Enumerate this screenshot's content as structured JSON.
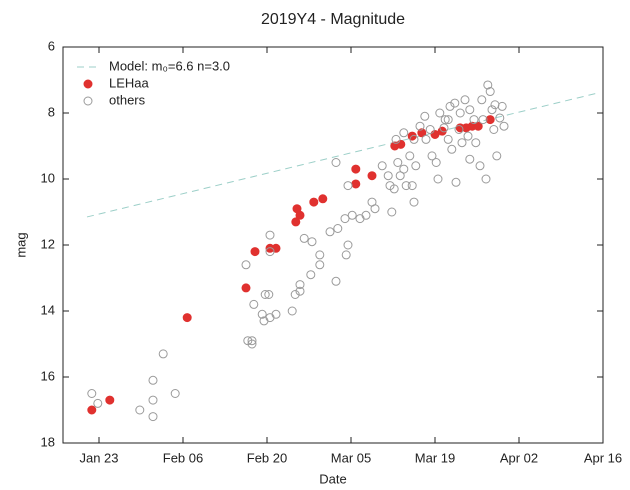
{
  "chart_data": {
    "type": "scatter",
    "title": "2019Y4 - Magnitude",
    "x_label": "Date",
    "y_label": "mag",
    "xlim": [
      17,
      107
    ],
    "xticks": [
      {
        "value": 23,
        "label": "Jan 23"
      },
      {
        "value": 37,
        "label": "Feb 06"
      },
      {
        "value": 51,
        "label": "Feb 20"
      },
      {
        "value": 65,
        "label": "Mar 05"
      },
      {
        "value": 79,
        "label": "Mar 19"
      },
      {
        "value": 93,
        "label": "Apr 02"
      },
      {
        "value": 107,
        "label": "Apr 16"
      }
    ],
    "ylim": [
      18,
      6
    ],
    "yticks": [
      6,
      8,
      10,
      12,
      14,
      16,
      18
    ],
    "legend": "upper left",
    "series": [
      {
        "name": "Model: m₀=6.6 n=3.0",
        "color": "#9ccfc8",
        "style": "dashed-line",
        "x": [
          21,
          106
        ],
        "values": [
          11.15,
          7.4
        ]
      },
      {
        "name": "LEHaa",
        "color": "#e0312f",
        "style": "filled",
        "x": [
          21.8,
          24.8,
          37.7,
          47.5,
          49,
          51.5,
          52.5,
          55.8,
          56,
          56.5,
          58.8,
          60.3,
          65.8,
          65.8,
          68.5,
          72.3,
          73.3,
          75.2,
          76.8,
          79,
          80.2,
          83.2,
          84.2,
          85.2,
          86.2,
          88.2
        ],
        "values": [
          17.0,
          16.7,
          14.2,
          13.3,
          12.2,
          12.1,
          12.1,
          11.3,
          10.9,
          11.1,
          10.7,
          10.6,
          9.7,
          10.15,
          9.9,
          9.0,
          8.95,
          8.7,
          8.6,
          8.65,
          8.55,
          8.45,
          8.45,
          8.4,
          8.4,
          8.2
        ]
      },
      {
        "name": "others",
        "color": "#9a9a9a",
        "style": "hollow",
        "x": [
          21.8,
          22.8,
          29.8,
          32,
          32,
          32,
          33.7,
          35.7,
          47.5,
          47.8,
          48.5,
          48.5,
          48.8,
          50.2,
          50.7,
          51.3,
          51.5,
          51.5,
          50.5,
          51.5,
          52.5,
          55.2,
          55.7,
          56.5,
          56.5,
          57.2,
          58.5,
          58.3,
          59.8,
          59.8,
          62.5,
          61.5,
          62.8,
          64,
          64.5,
          64.2,
          65.2,
          62.5,
          64.5,
          66.5,
          67.5,
          68.5,
          69,
          70.2,
          71.2,
          71.5,
          71.8,
          72.2,
          72.8,
          73.2,
          73.8,
          74.2,
          74.8,
          75.5,
          75.2,
          75.8,
          75.5,
          76.5,
          77.3,
          78.2,
          78.5,
          79.2,
          79.5,
          79.8,
          80.7,
          81.2,
          81.5,
          81.8,
          82.3,
          82.5,
          83.2,
          83.5,
          84,
          84.5,
          84.8,
          85.5,
          85.8,
          86.5,
          86.8,
          87.5,
          87.8,
          88.2,
          88.5,
          88.8,
          89.3,
          89.8,
          90.2,
          90.5,
          72.5,
          73.8,
          77.5,
          80.5,
          83,
          87,
          89,
          84.8,
          81.2
        ],
        "values": [
          16.5,
          16.8,
          17.0,
          16.1,
          16.7,
          17.2,
          15.3,
          16.5,
          12.6,
          14.9,
          14.9,
          15.0,
          13.8,
          14.1,
          13.5,
          13.5,
          11.7,
          12.2,
          14.3,
          14.2,
          14.1,
          14.0,
          13.5,
          13.2,
          13.4,
          11.8,
          11.9,
          12.9,
          12.6,
          12.3,
          13.1,
          11.6,
          11.5,
          11.2,
          12.0,
          12.3,
          11.1,
          9.5,
          10.2,
          11.2,
          11.1,
          10.7,
          10.9,
          9.6,
          9.9,
          10.2,
          11.0,
          10.3,
          9.5,
          9.9,
          9.7,
          10.2,
          9.3,
          10.7,
          10.2,
          9.6,
          8.8,
          8.4,
          8.1,
          8.5,
          9.3,
          9.5,
          10.0,
          8.0,
          8.2,
          8.8,
          7.8,
          9.1,
          7.7,
          10.1,
          8.0,
          8.9,
          7.6,
          8.7,
          9.4,
          8.2,
          8.9,
          9.6,
          7.6,
          10.0,
          7.15,
          7.35,
          7.9,
          8.5,
          9.3,
          8.15,
          7.8,
          8.4,
          8.8,
          8.6,
          8.8,
          8.45,
          8.5,
          8.2,
          7.75,
          7.9,
          8.2
        ]
      }
    ]
  }
}
